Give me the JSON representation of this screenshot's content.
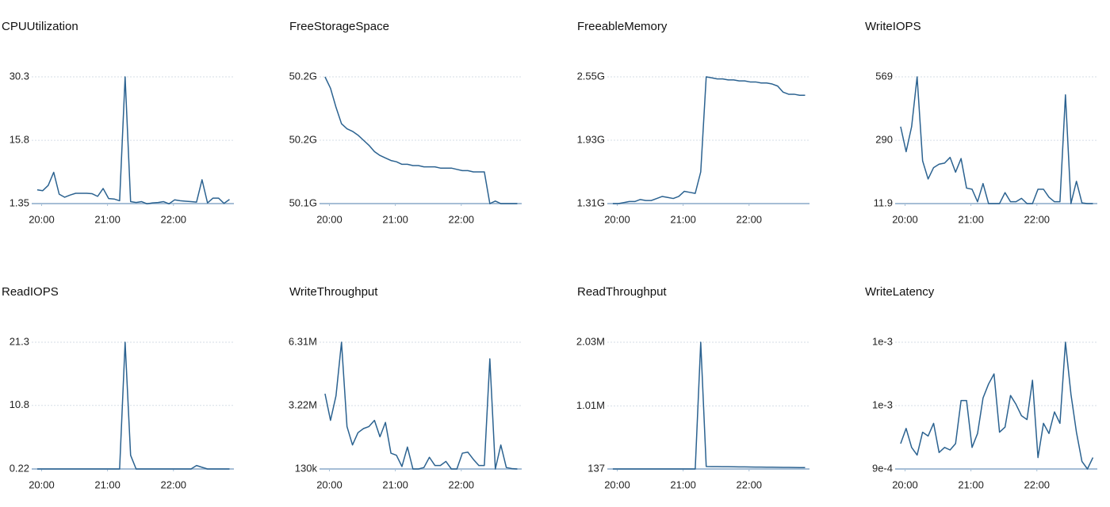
{
  "chart_data": [
    {
      "type": "line",
      "title": "CPUUtilization",
      "x": [
        1196,
        1201,
        1206,
        1211,
        1216,
        1221,
        1226,
        1231,
        1236,
        1241,
        1246,
        1251,
        1256,
        1261,
        1266,
        1271,
        1276,
        1281,
        1286,
        1291,
        1296,
        1301,
        1306,
        1311,
        1316,
        1321,
        1326,
        1331,
        1336,
        1341,
        1346,
        1351,
        1356,
        1361,
        1366,
        1371
      ],
      "xlim": [
        1191,
        1375
      ],
      "xticks": [
        {
          "value": 1200,
          "label": "20:00"
        },
        {
          "value": 1260,
          "label": "21:00"
        },
        {
          "value": 1320,
          "label": "22:00"
        }
      ],
      "ylim": [
        1.35,
        30.3
      ],
      "yticks": [
        1.35,
        15.8,
        30.3
      ],
      "grid": true,
      "series": [
        {
          "color": "#2b6290",
          "values": [
            4.5,
            4.3,
            5.5,
            8.5,
            3.5,
            2.8,
            3.3,
            3.7,
            3.7,
            3.7,
            3.6,
            3,
            4.8,
            2.5,
            2.4,
            2,
            30.3,
            1.8,
            1.6,
            1.8,
            1.3,
            1.5,
            1.6,
            1.8,
            1.3,
            2.2,
            2,
            1.9,
            1.8,
            1.7,
            6.8,
            1.5,
            2.6,
            2.6,
            1.4,
            2.3
          ]
        }
      ]
    },
    {
      "type": "line",
      "title": "FreeStorageSpace",
      "x": [
        1196,
        1201,
        1206,
        1211,
        1216,
        1221,
        1226,
        1231,
        1236,
        1241,
        1246,
        1251,
        1256,
        1261,
        1266,
        1271,
        1276,
        1281,
        1286,
        1291,
        1296,
        1301,
        1306,
        1311,
        1316,
        1321,
        1326,
        1331,
        1336,
        1341,
        1346,
        1351,
        1356,
        1361,
        1366,
        1371
      ],
      "xlim": [
        1191,
        1375
      ],
      "xticks": [
        {
          "value": 1200,
          "label": "20:00"
        },
        {
          "value": 1260,
          "label": "21:00"
        },
        {
          "value": 1320,
          "label": "22:00"
        }
      ],
      "ylim": [
        50.1,
        50.2
      ],
      "yticks": [
        {
          "value": 50.1,
          "label": "50.1G"
        },
        {
          "value": 50.15,
          "label": "50.2G"
        },
        {
          "value": 50.2,
          "label": "50.2G"
        }
      ],
      "grid": true,
      "series": [
        {
          "color": "#2b6290",
          "values": [
            50.2,
            50.191,
            50.176,
            50.163,
            50.159,
            50.157,
            50.154,
            50.15,
            50.146,
            50.141,
            50.138,
            50.136,
            50.134,
            50.133,
            50.131,
            50.131,
            50.13,
            50.13,
            50.129,
            50.129,
            50.129,
            50.128,
            50.128,
            50.128,
            50.127,
            50.126,
            50.126,
            50.125,
            50.125,
            50.125,
            50.1,
            50.102,
            50.1,
            50.1,
            50.1,
            50.1
          ]
        }
      ]
    },
    {
      "type": "line",
      "title": "FreeableMemory",
      "x": [
        1196,
        1201,
        1206,
        1211,
        1216,
        1221,
        1226,
        1231,
        1236,
        1241,
        1246,
        1251,
        1256,
        1261,
        1266,
        1271,
        1276,
        1281,
        1286,
        1291,
        1296,
        1301,
        1306,
        1311,
        1316,
        1321,
        1326,
        1331,
        1336,
        1341,
        1346,
        1351,
        1356,
        1361,
        1366,
        1371
      ],
      "xlim": [
        1191,
        1375
      ],
      "xticks": [
        {
          "value": 1200,
          "label": "20:00"
        },
        {
          "value": 1260,
          "label": "21:00"
        },
        {
          "value": 1320,
          "label": "22:00"
        }
      ],
      "ylim": [
        1.31,
        2.55
      ],
      "yticks": [
        {
          "value": 1.31,
          "label": "1.31G"
        },
        {
          "value": 1.93,
          "label": "1.93G"
        },
        {
          "value": 2.55,
          "label": "2.55G"
        }
      ],
      "grid": true,
      "series": [
        {
          "color": "#2b6290",
          "values": [
            1.31,
            1.31,
            1.32,
            1.33,
            1.33,
            1.35,
            1.34,
            1.34,
            1.36,
            1.38,
            1.37,
            1.36,
            1.38,
            1.43,
            1.42,
            1.41,
            1.62,
            2.55,
            2.54,
            2.53,
            2.53,
            2.52,
            2.52,
            2.51,
            2.51,
            2.5,
            2.5,
            2.49,
            2.49,
            2.48,
            2.46,
            2.4,
            2.38,
            2.38,
            2.37,
            2.37
          ]
        }
      ]
    },
    {
      "type": "line",
      "title": "WriteIOPS",
      "x": [
        1196,
        1201,
        1206,
        1211,
        1216,
        1221,
        1226,
        1231,
        1236,
        1241,
        1246,
        1251,
        1256,
        1261,
        1266,
        1271,
        1276,
        1281,
        1286,
        1291,
        1296,
        1301,
        1306,
        1311,
        1316,
        1321,
        1326,
        1331,
        1336,
        1341,
        1346,
        1351,
        1356,
        1361,
        1366,
        1371
      ],
      "xlim": [
        1191,
        1375
      ],
      "xticks": [
        {
          "value": 1200,
          "label": "20:00"
        },
        {
          "value": 1260,
          "label": "21:00"
        },
        {
          "value": 1320,
          "label": "22:00"
        }
      ],
      "ylim": [
        11.9,
        569
      ],
      "yticks": [
        11.9,
        290,
        569
      ],
      "grid": true,
      "series": [
        {
          "color": "#2b6290",
          "values": [
            350,
            240,
            350,
            569,
            200,
            120,
            170,
            185,
            190,
            215,
            150,
            210,
            80,
            75,
            20,
            100,
            12,
            12,
            12,
            60,
            20,
            20,
            35,
            12,
            12,
            75,
            75,
            40,
            20,
            20,
            490,
            12,
            110,
            15,
            12,
            12
          ]
        }
      ]
    },
    {
      "type": "line",
      "title": "ReadIOPS",
      "x": [
        1196,
        1201,
        1206,
        1211,
        1216,
        1221,
        1226,
        1231,
        1236,
        1241,
        1246,
        1251,
        1256,
        1261,
        1266,
        1271,
        1276,
        1281,
        1286,
        1291,
        1296,
        1301,
        1306,
        1311,
        1316,
        1321,
        1326,
        1331,
        1336,
        1341,
        1346,
        1351,
        1356,
        1361,
        1366,
        1371
      ],
      "xlim": [
        1191,
        1375
      ],
      "xticks": [
        {
          "value": 1200,
          "label": "20:00"
        },
        {
          "value": 1260,
          "label": "21:00"
        },
        {
          "value": 1320,
          "label": "22:00"
        }
      ],
      "ylim": [
        0.22,
        21.3
      ],
      "yticks": [
        0.22,
        10.8,
        21.3
      ],
      "grid": true,
      "series": [
        {
          "color": "#2b6290",
          "values": [
            0.22,
            0.22,
            0.22,
            0.22,
            0.22,
            0.22,
            0.22,
            0.22,
            0.22,
            0.22,
            0.22,
            0.22,
            0.22,
            0.22,
            0.22,
            0.22,
            21.3,
            2.5,
            0.22,
            0.22,
            0.22,
            0.22,
            0.22,
            0.22,
            0.22,
            0.22,
            0.22,
            0.22,
            0.22,
            0.8,
            0.5,
            0.22,
            0.22,
            0.22,
            0.22,
            0.22
          ]
        }
      ]
    },
    {
      "type": "line",
      "title": "WriteThroughput",
      "x": [
        1196,
        1201,
        1206,
        1211,
        1216,
        1221,
        1226,
        1231,
        1236,
        1241,
        1246,
        1251,
        1256,
        1261,
        1266,
        1271,
        1276,
        1281,
        1286,
        1291,
        1296,
        1301,
        1306,
        1311,
        1316,
        1321,
        1326,
        1331,
        1336,
        1341,
        1346,
        1351,
        1356,
        1361,
        1366,
        1371
      ],
      "xlim": [
        1191,
        1375
      ],
      "xticks": [
        {
          "value": 1200,
          "label": "20:00"
        },
        {
          "value": 1260,
          "label": "21:00"
        },
        {
          "value": 1320,
          "label": "22:00"
        }
      ],
      "ylim": [
        130000,
        6310000
      ],
      "yticks": [
        {
          "value": 130000,
          "label": "130k"
        },
        {
          "value": 3220000,
          "label": "3.22M"
        },
        {
          "value": 6310000,
          "label": "6.31M"
        }
      ],
      "grid": true,
      "series": [
        {
          "color": "#2b6290",
          "values": [
            3800000,
            2500000,
            3700000,
            6310000,
            2200000,
            1300000,
            1900000,
            2100000,
            2200000,
            2500000,
            1700000,
            2400000,
            900000,
            800000,
            250000,
            1200000,
            130000,
            130000,
            200000,
            700000,
            300000,
            300000,
            500000,
            130000,
            130000,
            900000,
            950000,
            600000,
            300000,
            300000,
            5500000,
            130000,
            1300000,
            200000,
            150000,
            130000
          ]
        }
      ]
    },
    {
      "type": "line",
      "title": "ReadThroughput",
      "x": [
        1196,
        1201,
        1206,
        1211,
        1216,
        1221,
        1226,
        1231,
        1236,
        1241,
        1246,
        1251,
        1256,
        1261,
        1266,
        1271,
        1276,
        1281,
        1286,
        1291,
        1296,
        1301,
        1306,
        1311,
        1316,
        1321,
        1326,
        1331,
        1336,
        1341,
        1346,
        1351,
        1356,
        1361,
        1366,
        1371
      ],
      "xlim": [
        1191,
        1375
      ],
      "xticks": [
        {
          "value": 1200,
          "label": "20:00"
        },
        {
          "value": 1260,
          "label": "21:00"
        },
        {
          "value": 1320,
          "label": "22:00"
        }
      ],
      "ylim": [
        137,
        2030000
      ],
      "yticks": [
        137,
        {
          "value": 1010000,
          "label": "1.01M"
        },
        {
          "value": 2030000,
          "label": "2.03M"
        }
      ],
      "grid": true,
      "series": [
        {
          "color": "#2b6290",
          "values": [
            137,
            137,
            137,
            137,
            137,
            137,
            137,
            137,
            137,
            137,
            137,
            137,
            137,
            137,
            137,
            137,
            2030000,
            40000,
            39000,
            38000,
            37000,
            36000,
            35000,
            34000,
            33000,
            32000,
            31000,
            30000,
            29000,
            28000,
            27000,
            26000,
            25000,
            24000,
            23000,
            22000
          ]
        }
      ]
    },
    {
      "type": "line",
      "title": "WriteLatency",
      "x": [
        1196,
        1201,
        1206,
        1211,
        1216,
        1221,
        1226,
        1231,
        1236,
        1241,
        1246,
        1251,
        1256,
        1261,
        1266,
        1271,
        1276,
        1281,
        1286,
        1291,
        1296,
        1301,
        1306,
        1311,
        1316,
        1321,
        1326,
        1331,
        1336,
        1341,
        1346,
        1351,
        1356,
        1361,
        1366,
        1371
      ],
      "xlim": [
        1191,
        1375
      ],
      "xticks": [
        {
          "value": 1200,
          "label": "20:00"
        },
        {
          "value": 1260,
          "label": "21:00"
        },
        {
          "value": 1320,
          "label": "22:00"
        }
      ],
      "ylim": [
        0.0009,
        0.001
      ],
      "yticks": [
        {
          "value": 0.0009,
          "label": "9e-4"
        },
        {
          "value": 0.00095,
          "label": "1e-3"
        },
        {
          "value": 0.001,
          "label": "1e-3"
        }
      ],
      "grid": true,
      "series": [
        {
          "color": "#2b6290",
          "values": [
            0.00092,
            0.000932,
            0.000917,
            0.000911,
            0.000929,
            0.000926,
            0.000936,
            0.000913,
            0.000917,
            0.000915,
            0.00092,
            0.000954,
            0.000954,
            0.000917,
            0.000928,
            0.000956,
            0.000967,
            0.000975,
            0.000929,
            0.000933,
            0.000958,
            0.000951,
            0.000942,
            0.000939,
            0.00097,
            0.000909,
            0.000936,
            0.000928,
            0.000945,
            0.000936,
            0.001,
            0.000959,
            0.000929,
            0.000906,
            0.0009,
            0.000909
          ]
        }
      ]
    }
  ]
}
